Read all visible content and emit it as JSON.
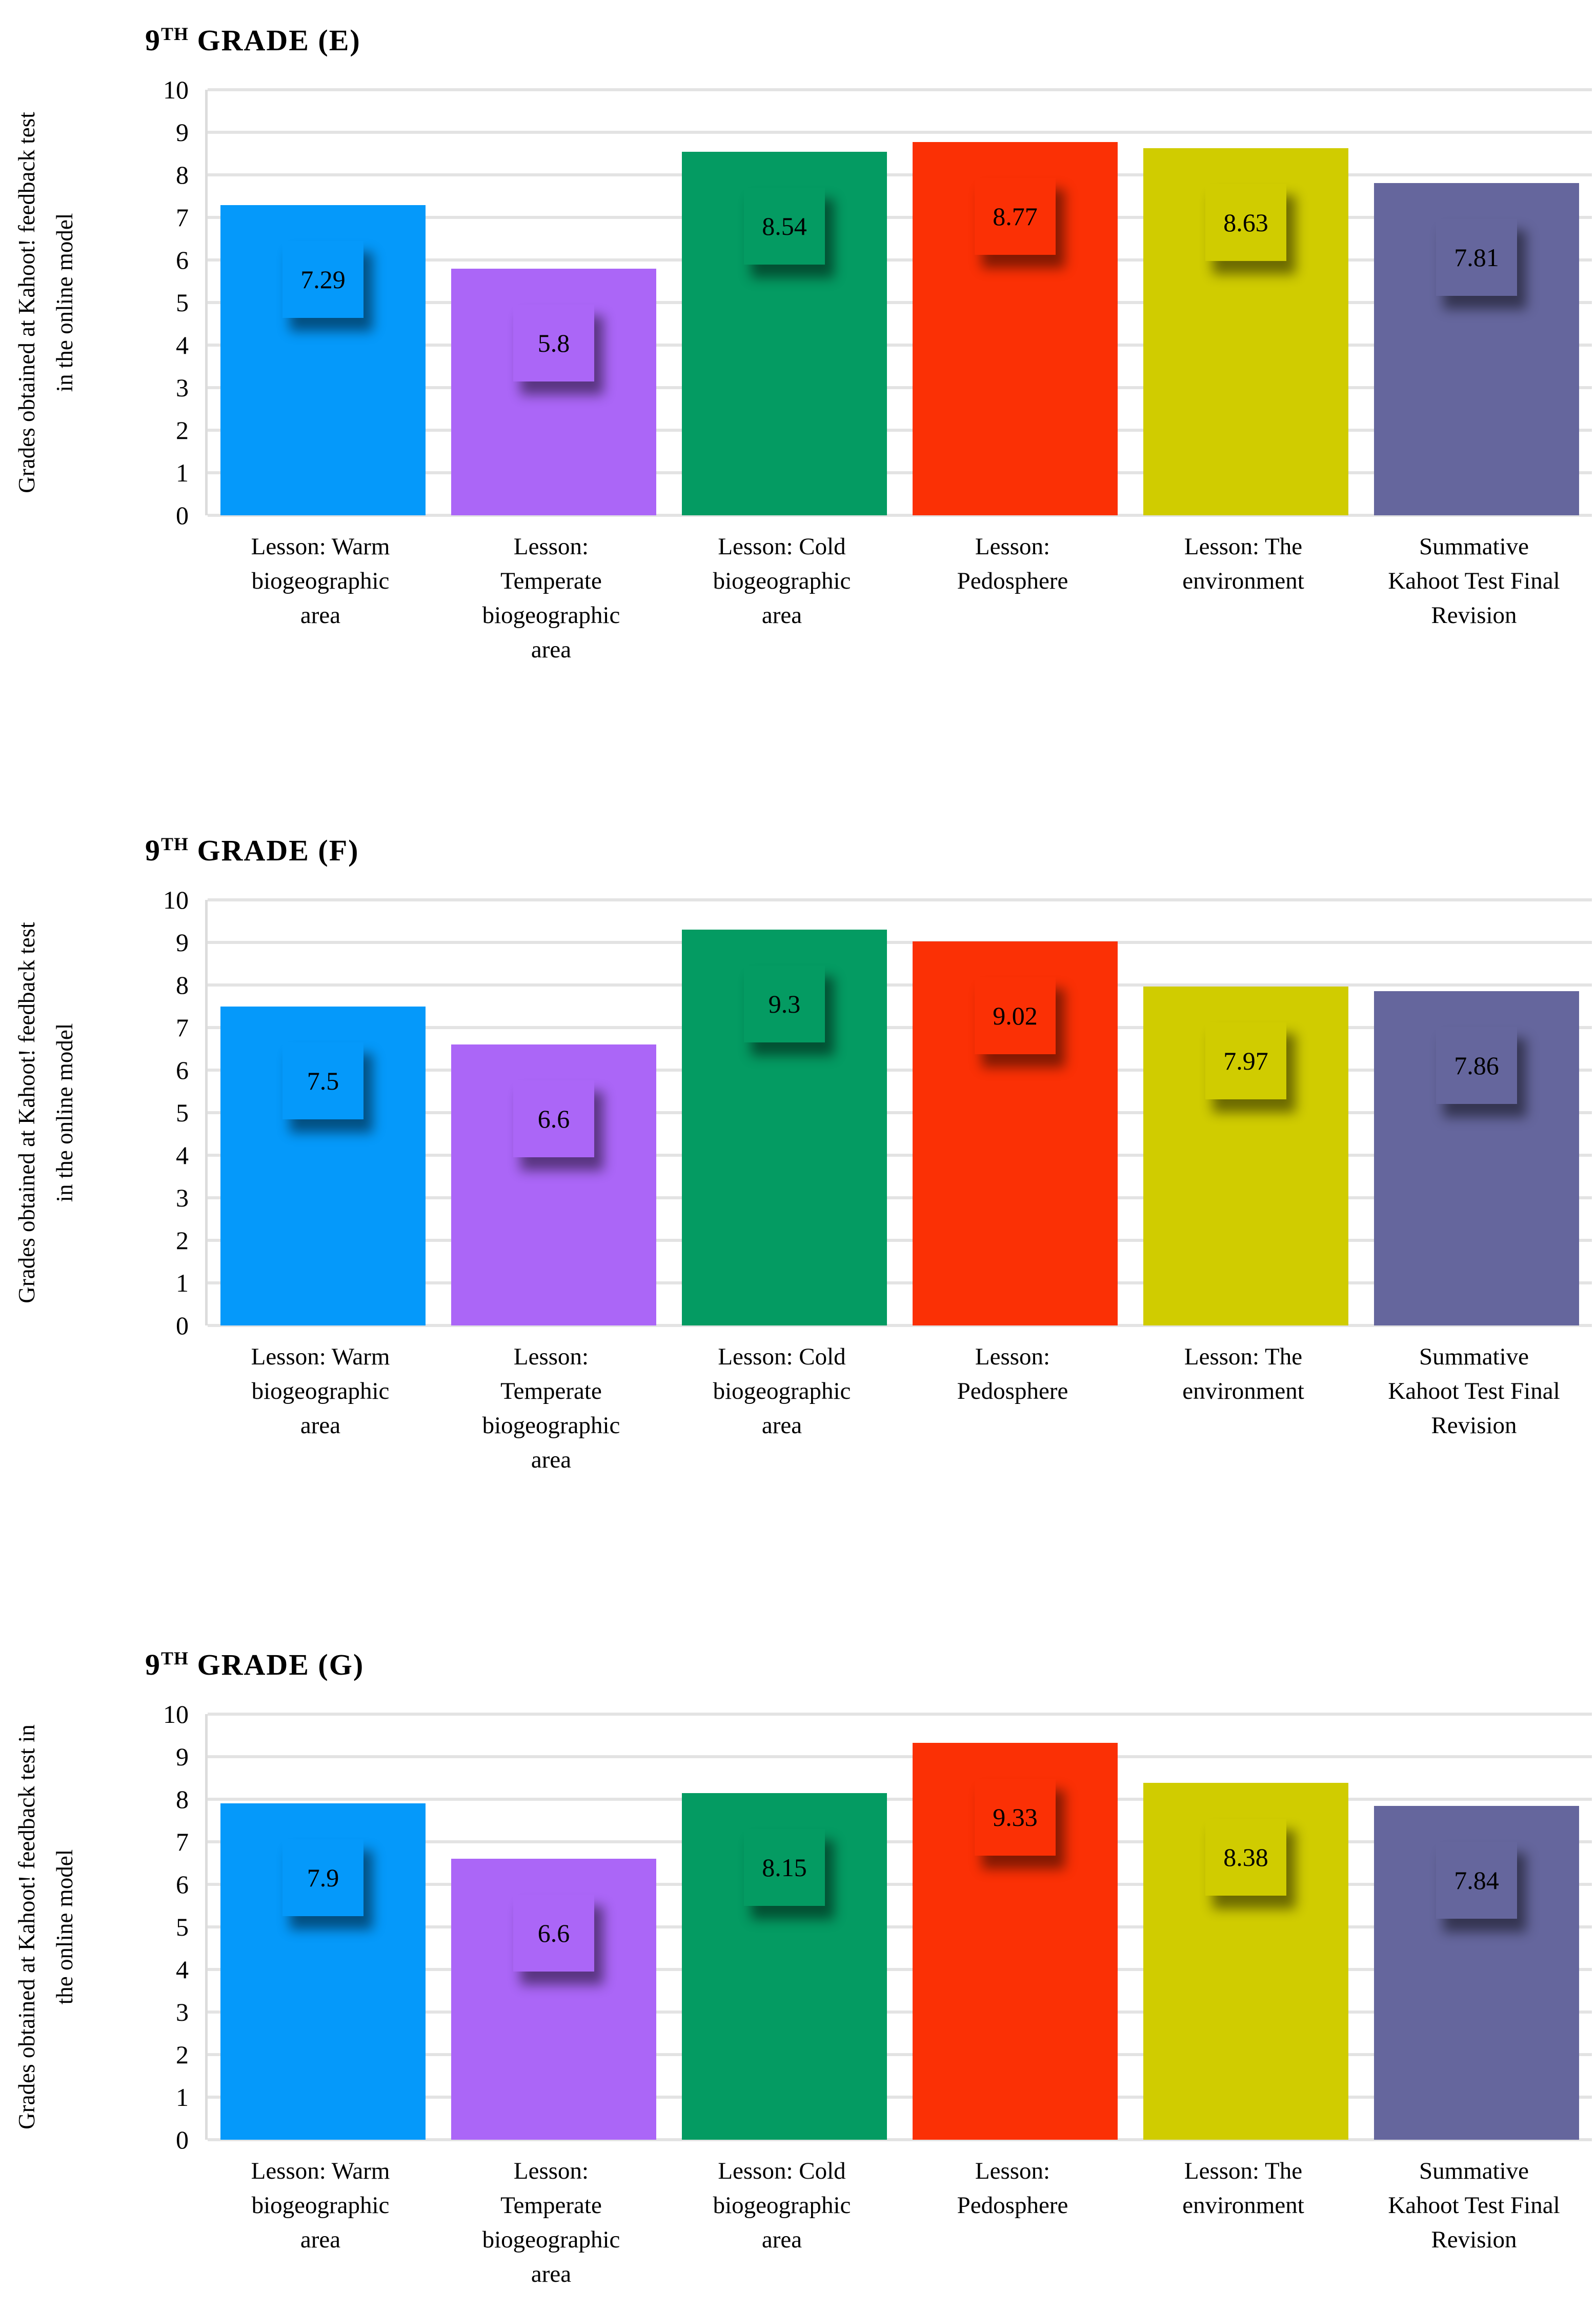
{
  "chart_data": [
    {
      "type": "bar",
      "title": "9TH GRADE (E)",
      "title_num": "9",
      "title_sup": "TH",
      "title_rest": " GRADE (E)",
      "ylabel": "Grades obtained at Kahoot! feedback test in the online model",
      "ylabel_lines": [
        "Grades obtained at Kahoot! feedback test",
        "in the online model"
      ],
      "xlabel": "",
      "categories": [
        "Lesson: Warm\nbiogeographic\narea",
        "Lesson:\nTemperate\nbiogeographic\narea",
        "Lesson: Cold\nbiogeographic\narea",
        "Lesson:\nPedosphere",
        "Lesson: The\nenvironment",
        "Summative\nKahoot Test Final\nRevision"
      ],
      "values": [
        7.29,
        5.8,
        8.54,
        8.77,
        8.63,
        7.81
      ],
      "value_labels": [
        "7.29",
        "5.8",
        "8.54",
        "8.77",
        "8.63",
        "7.81"
      ],
      "ylim": [
        0,
        10
      ],
      "yticks": [
        0,
        1,
        2,
        3,
        4,
        5,
        6,
        7,
        8,
        9,
        10
      ],
      "grid": "horizontal",
      "legend": "none"
    },
    {
      "type": "bar",
      "title": "9TH GRADE (F)",
      "title_num": "9",
      "title_sup": "TH",
      "title_rest": " GRADE (F)",
      "ylabel": "Grades obtained at Kahoot! feedback test in the online model",
      "ylabel_lines": [
        "Grades obtained at Kahoot! feedback test",
        "in the online model"
      ],
      "xlabel": "",
      "categories": [
        "Lesson: Warm\nbiogeographic\narea",
        "Lesson:\nTemperate\nbiogeographic\narea",
        "Lesson: Cold\nbiogeographic\narea",
        "Lesson:\nPedosphere",
        "Lesson: The\nenvironment",
        "Summative\nKahoot Test Final\nRevision"
      ],
      "values": [
        7.5,
        6.6,
        9.3,
        9.02,
        7.97,
        7.86
      ],
      "value_labels": [
        "7.5",
        "6.6",
        "9.3",
        "9.02",
        "7.97",
        "7.86"
      ],
      "ylim": [
        0,
        10
      ],
      "yticks": [
        0,
        1,
        2,
        3,
        4,
        5,
        6,
        7,
        8,
        9,
        10
      ],
      "grid": "horizontal",
      "legend": "none"
    },
    {
      "type": "bar",
      "title": "9TH GRADE (G)",
      "title_num": "9",
      "title_sup": "TH",
      "title_rest": " GRADE (G)",
      "ylabel": "Grades obtained at Kahoot! feedback test in the online model",
      "ylabel_lines": [
        "Grades obtained at Kahoot! feedback test in",
        "the online model"
      ],
      "xlabel": "",
      "categories": [
        "Lesson: Warm\nbiogeographic\narea",
        "Lesson:\nTemperate\nbiogeographic\narea",
        "Lesson: Cold\nbiogeographic\narea",
        "Lesson:\nPedosphere",
        "Lesson: The\nenvironment",
        "Summative\nKahoot Test Final\nRevision"
      ],
      "values": [
        7.9,
        6.6,
        8.15,
        9.33,
        8.38,
        7.84
      ],
      "value_labels": [
        "7.9",
        "6.6",
        "8.15",
        "9.33",
        "8.38",
        "7.84"
      ],
      "ylim": [
        0,
        10
      ],
      "yticks": [
        0,
        1,
        2,
        3,
        4,
        5,
        6,
        7,
        8,
        9,
        10
      ],
      "grid": "horizontal",
      "legend": "none"
    }
  ],
  "bar_colors": [
    "#0599FA",
    "#AB66F7",
    "#049B62",
    "#FB3005",
    "#D0CC00",
    "#65669D"
  ],
  "gridline_color": "#E3E3E3",
  "axis_line_color": "#DCDCDC",
  "text_color": "#000000",
  "background": "#FFFFFF"
}
